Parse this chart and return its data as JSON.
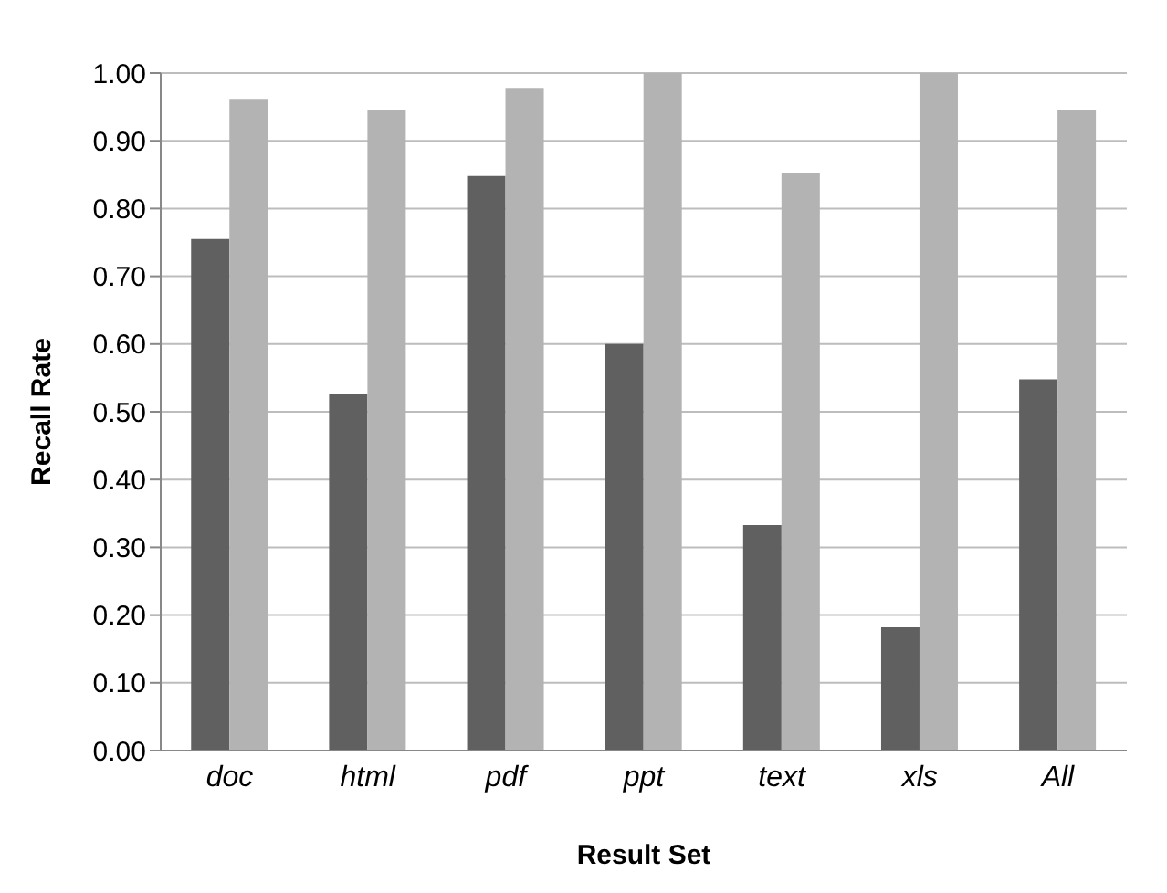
{
  "chart_data": {
    "type": "bar",
    "xlabel": "Result Set",
    "ylabel": "Recall Rate",
    "categories": [
      "doc",
      "html",
      "pdf",
      "ppt",
      "text",
      "xls",
      "All"
    ],
    "series": [
      {
        "color": "#606060",
        "values": [
          0.755,
          0.527,
          0.848,
          0.6,
          0.333,
          0.182,
          0.548
        ]
      },
      {
        "color": "#b3b3b3",
        "values": [
          0.962,
          0.945,
          0.978,
          1.0,
          0.852,
          1.0,
          0.945
        ]
      }
    ],
    "ylim": [
      0,
      1
    ],
    "yticks": [
      {
        "value": 0,
        "label": "0.00"
      },
      {
        "value": 0.1,
        "label": "0.10"
      },
      {
        "value": 0.2,
        "label": "0.20"
      },
      {
        "value": 0.3,
        "label": "0.30"
      },
      {
        "value": 0.4,
        "label": "0.40"
      },
      {
        "value": 0.5,
        "label": "0.50"
      },
      {
        "value": 0.6,
        "label": "0.60"
      },
      {
        "value": 0.7,
        "label": "0.70"
      },
      {
        "value": 0.8,
        "label": "0.80"
      },
      {
        "value": 0.9,
        "label": "0.90"
      },
      {
        "value": 1,
        "label": "1.00"
      }
    ],
    "grid": "y"
  }
}
